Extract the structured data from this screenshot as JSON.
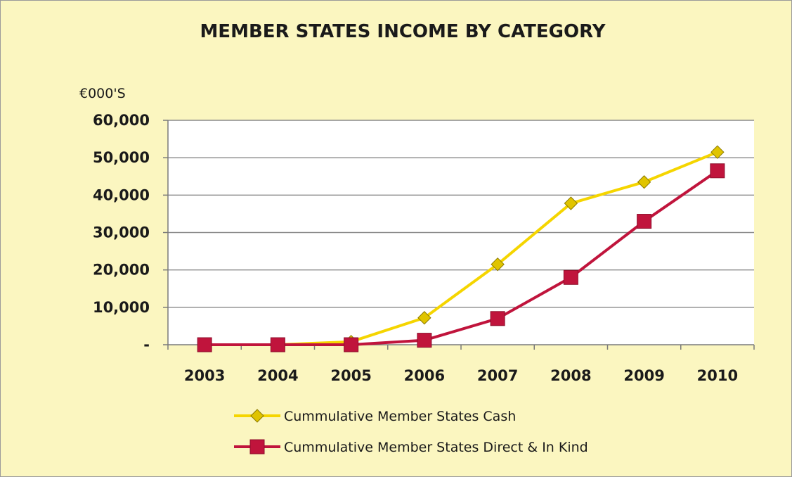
{
  "chart_data": {
    "type": "line",
    "title": "MEMBER STATES INCOME BY CATEGORY",
    "ylabel": "€000'S",
    "xlabel": "",
    "x": [
      "2003",
      "2004",
      "2005",
      "2006",
      "2007",
      "2008",
      "2009",
      "2010"
    ],
    "ylim": [
      0,
      60000
    ],
    "yticks": [
      0,
      10000,
      20000,
      30000,
      40000,
      50000,
      60000
    ],
    "ytick_labels": [
      "-",
      "10,000",
      "20,000",
      "30,000",
      "40,000",
      "50,000",
      "60,000"
    ],
    "grid": true,
    "legend_position": "bottom",
    "series": [
      {
        "name": "Cummulative Member States Cash",
        "values": [
          0,
          0,
          800,
          7200,
          21500,
          37800,
          43500,
          51500
        ],
        "color": "#f5d500",
        "marker": "diamond",
        "marker_fill": "#e0c400"
      },
      {
        "name": "Cummulative Member States Direct & In Kind",
        "values": [
          0,
          0,
          0,
          1200,
          7000,
          18000,
          33000,
          46500
        ],
        "color": "#c0143c",
        "marker": "square",
        "marker_fill": "#c0143c"
      }
    ],
    "plot_background": "#ffffff",
    "chart_background": "#fbf6c0"
  }
}
